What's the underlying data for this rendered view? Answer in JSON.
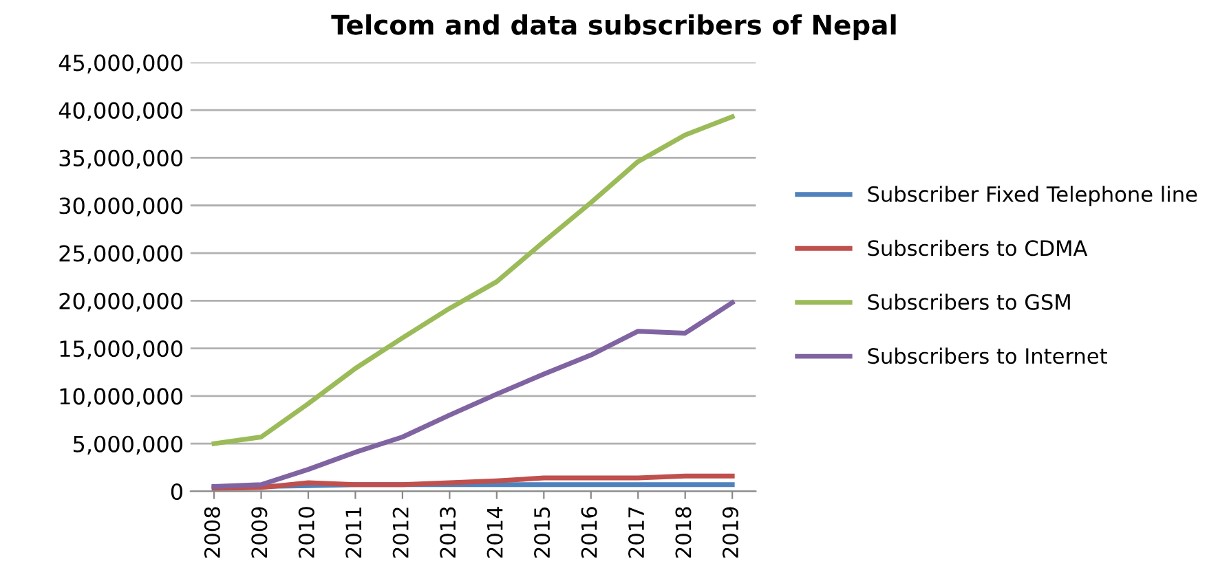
{
  "chart_data": {
    "type": "line",
    "title": "Telcom and data subscribers of Nepal",
    "categories": [
      "2008",
      "2009",
      "2010",
      "2011",
      "2012",
      "2013",
      "2014",
      "2015",
      "2016",
      "2017",
      "2018",
      "2019"
    ],
    "series": [
      {
        "name": "Subscriber Fixed Telephone line",
        "color": "#4f81bd",
        "values": [
          500000,
          500000,
          600000,
          700000,
          700000,
          700000,
          700000,
          700000,
          700000,
          700000,
          700000,
          700000
        ]
      },
      {
        "name": "Subscribers to CDMA",
        "color": "#c0504d",
        "values": [
          300000,
          400000,
          900000,
          700000,
          700000,
          900000,
          1100000,
          1400000,
          1400000,
          1400000,
          1600000,
          1600000
        ]
      },
      {
        "name": "Subscribers to GSM",
        "color": "#9bbb59",
        "values": [
          5000000,
          5700000,
          9200000,
          12900000,
          16100000,
          19200000,
          22000000,
          26200000,
          30300000,
          34600000,
          37400000,
          39300000
        ]
      },
      {
        "name": "Subscribers to Internet",
        "color": "#8064a2",
        "values": [
          500000,
          700000,
          2300000,
          4100000,
          5700000,
          8000000,
          10200000,
          12300000,
          14300000,
          16800000,
          16600000,
          19800000
        ]
      }
    ],
    "ylim": [
      0,
      45000000
    ],
    "yticks": [
      {
        "value": 0,
        "label": "0"
      },
      {
        "value": 5000000,
        "label": "5,000,000"
      },
      {
        "value": 10000000,
        "label": "10,000,000"
      },
      {
        "value": 15000000,
        "label": "15,000,000"
      },
      {
        "value": 20000000,
        "label": "20,000,000"
      },
      {
        "value": 25000000,
        "label": "25,000,000"
      },
      {
        "value": 30000000,
        "label": "30,000,000"
      },
      {
        "value": 35000000,
        "label": "35,000,000"
      },
      {
        "value": 40000000,
        "label": "40,000,000"
      },
      {
        "value": 45000000,
        "label": "45,000,000"
      }
    ],
    "grid": "y",
    "legend": "right",
    "marker": "none",
    "line_style": "solid"
  }
}
